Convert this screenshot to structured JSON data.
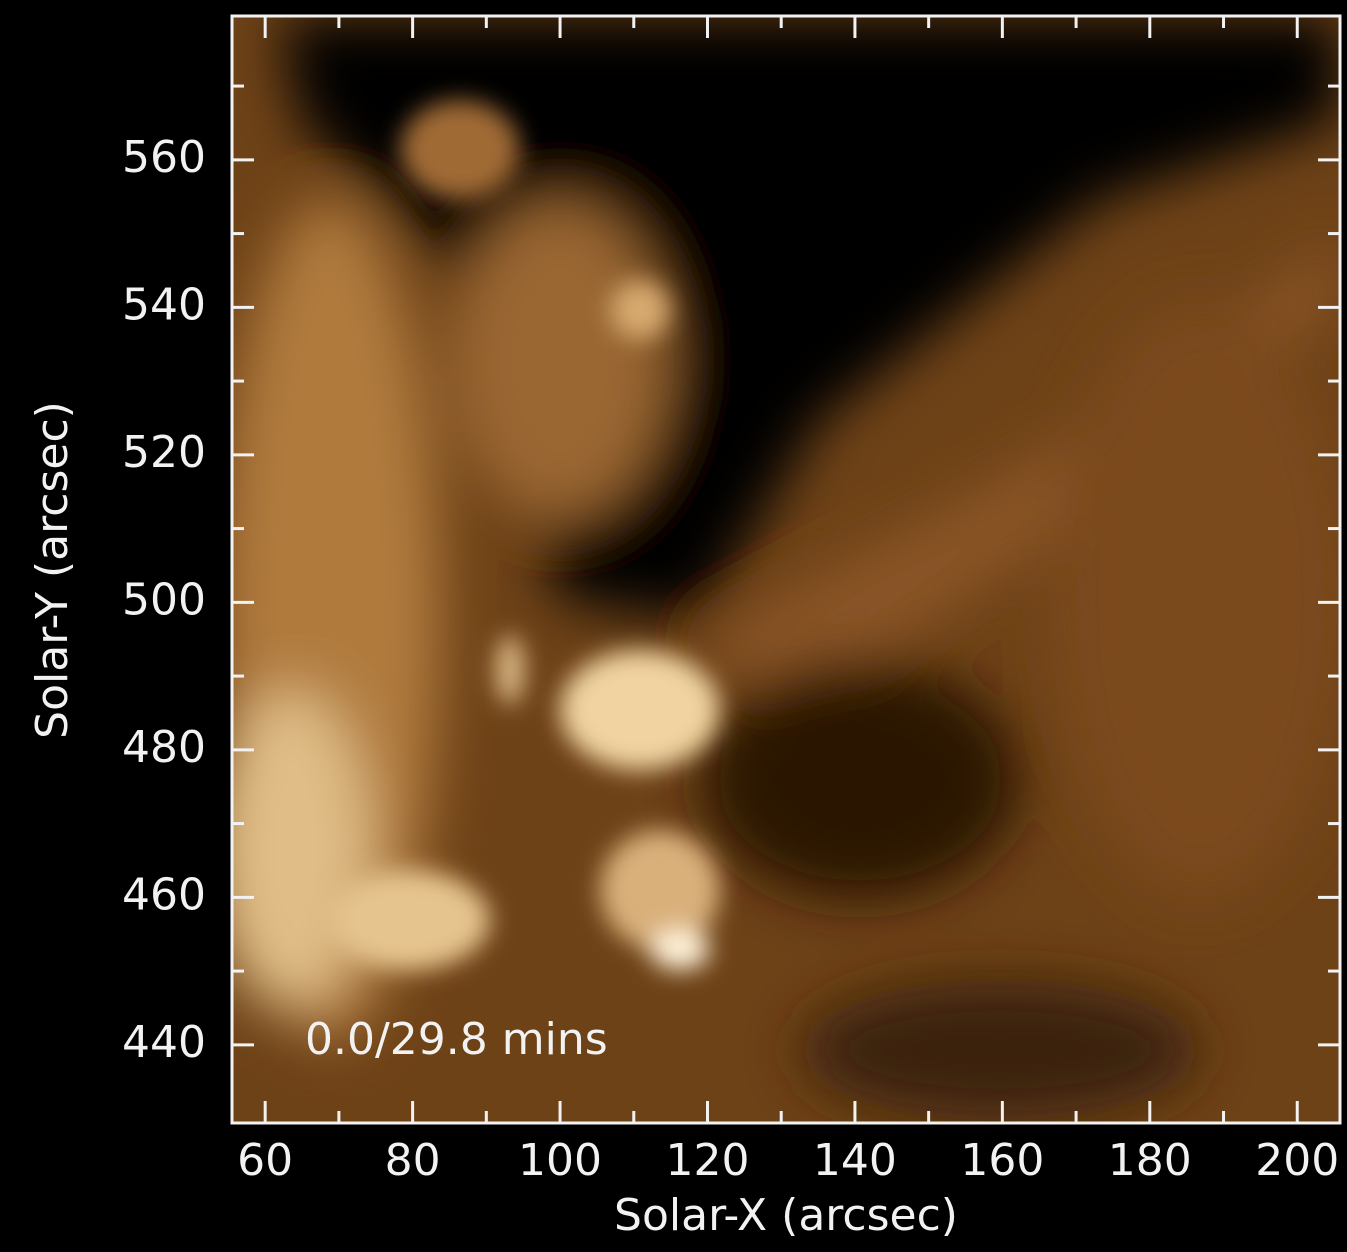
{
  "chart_data": {
    "type": "image",
    "x_label": "Solar-X (arcsec)",
    "y_label": "Solar-Y (arcsec)",
    "annotation": "0.0/29.8 mins",
    "xlim": [
      55.5,
      205.8
    ],
    "ylim": [
      429.4,
      579.5
    ],
    "xticks": [
      60,
      80,
      100,
      120,
      140,
      160,
      180,
      200
    ],
    "yticks": [
      440,
      460,
      480,
      500,
      520,
      540,
      560
    ],
    "xminor": [
      70,
      90,
      110,
      130,
      150,
      170,
      190
    ],
    "yminor": [
      450,
      470,
      490,
      510,
      530,
      550,
      570
    ]
  }
}
